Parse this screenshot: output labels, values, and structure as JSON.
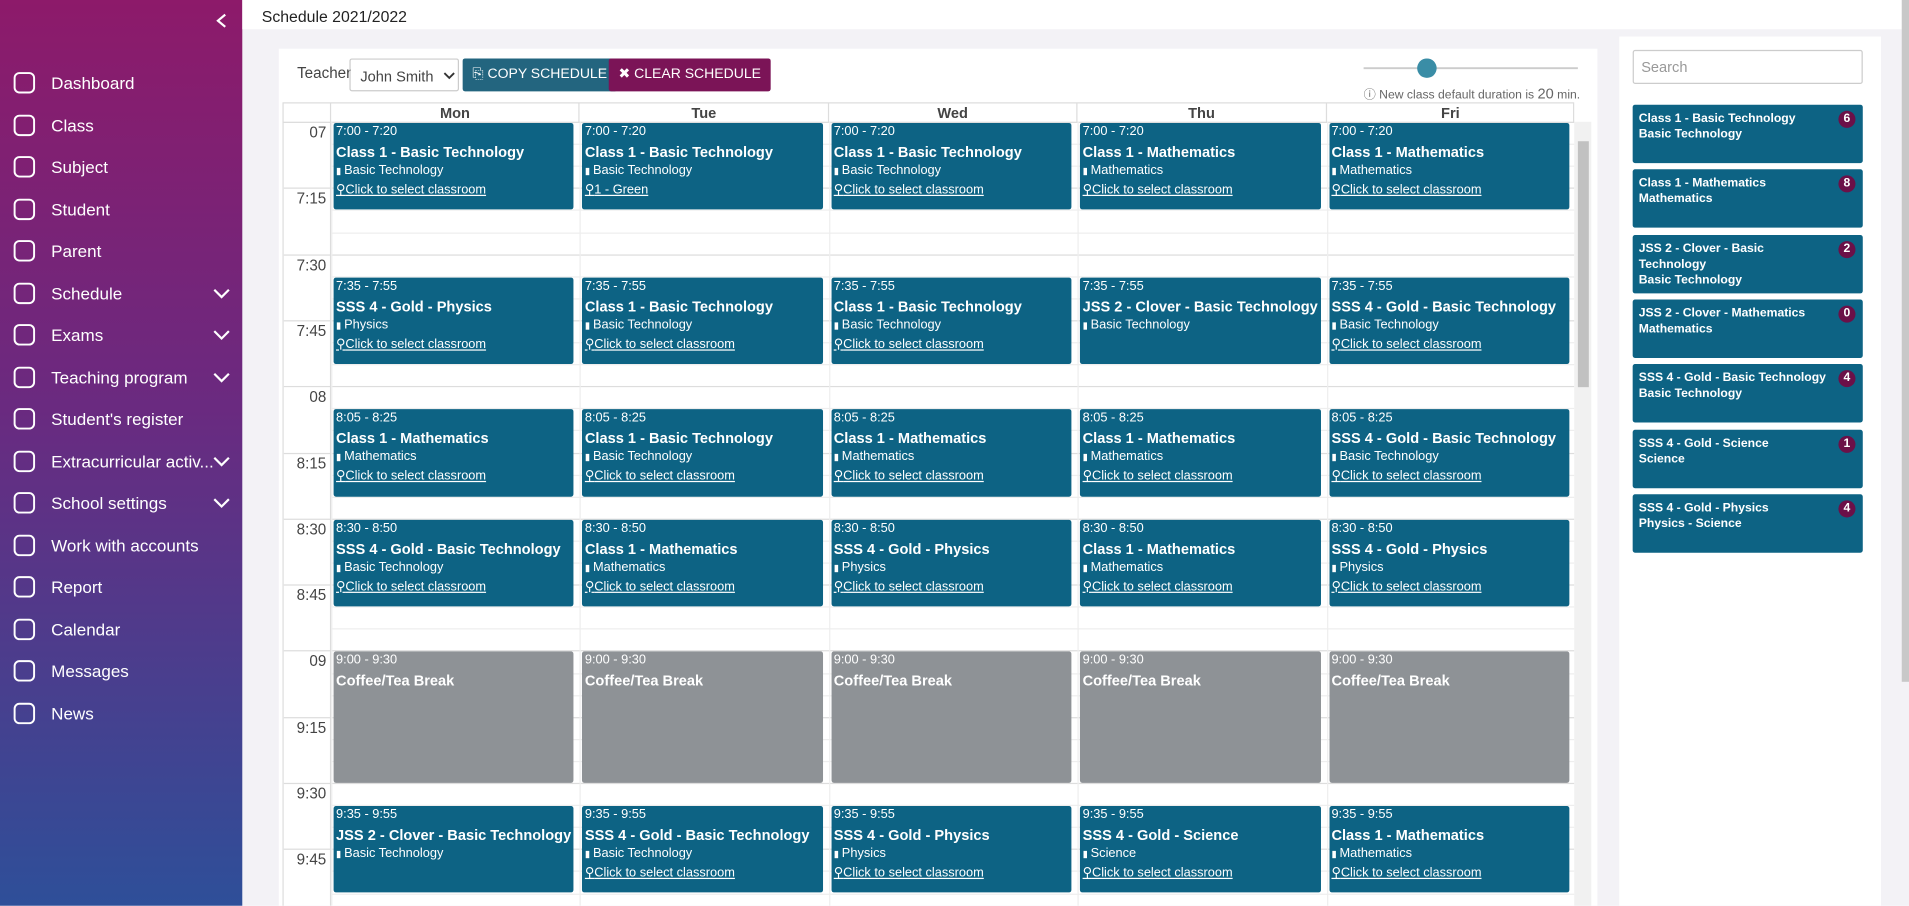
{
  "header": {
    "title": "Schedule 2021/2022"
  },
  "sidebar": {
    "items": [
      {
        "label": "Dashboard",
        "has_submenu": false
      },
      {
        "label": "Class",
        "has_submenu": false
      },
      {
        "label": "Subject",
        "has_submenu": false
      },
      {
        "label": "Student",
        "has_submenu": false
      },
      {
        "label": "Parent",
        "has_submenu": false
      },
      {
        "label": "Schedule",
        "has_submenu": true
      },
      {
        "label": "Exams",
        "has_submenu": true
      },
      {
        "label": "Teaching program",
        "has_submenu": true
      },
      {
        "label": "Student's register",
        "has_submenu": false
      },
      {
        "label": "Extracurricular activ...",
        "has_submenu": true
      },
      {
        "label": "School settings",
        "has_submenu": true
      },
      {
        "label": "Work with accounts",
        "has_submenu": false
      },
      {
        "label": "Report",
        "has_submenu": false
      },
      {
        "label": "Calendar",
        "has_submenu": false
      },
      {
        "label": "Messages",
        "has_submenu": false
      },
      {
        "label": "News",
        "has_submenu": false
      }
    ]
  },
  "toolbar": {
    "teacher_label": "Teacher",
    "teacher": "John Smith",
    "copy_button": "COPY SCHEDULE",
    "clear_button": "CLEAR SCHEDULE",
    "duration_note": "New class default duration is",
    "duration": "20",
    "duration_unit": "min."
  },
  "schedule": {
    "days": [
      "Mon",
      "Tue",
      "Wed",
      "Thu",
      "Fri"
    ],
    "time_labels": [
      "07",
      "7:15",
      "7:30",
      "7:45",
      "08",
      "8:15",
      "8:30",
      "8:45",
      "09",
      "9:15",
      "9:30",
      "9:45"
    ],
    "rows": [
      {
        "events": [
          {
            "time": "7:00 - 7:20",
            "title": "Class 1 - Basic Technology",
            "subject": "Basic Technology",
            "room": "Click to select classroom"
          },
          {
            "time": "7:00 - 7:20",
            "title": "Class 1 - Basic Technology",
            "subject": "Basic Technology",
            "room": "1 - Green"
          },
          {
            "time": "7:00 - 7:20",
            "title": "Class 1 - Basic Technology",
            "subject": "Basic Technology",
            "room": "Click to select classroom"
          },
          {
            "time": "7:00 - 7:20",
            "title": "Class 1 - Mathematics",
            "subject": "Mathematics",
            "room": "Click to select classroom"
          },
          {
            "time": "7:00 - 7:20",
            "title": "Class 1 - Mathematics",
            "subject": "Mathematics",
            "room": "Click to select classroom"
          }
        ]
      },
      {
        "events": [
          {
            "time": "7:35 - 7:55",
            "title": "SSS 4 - Gold - Physics",
            "subject": "Physics",
            "room": "Click to select classroom"
          },
          {
            "time": "7:35 - 7:55",
            "title": "Class 1 - Basic Technology",
            "subject": "Basic Technology",
            "room": "Click to select classroom"
          },
          {
            "time": "7:35 - 7:55",
            "title": "Class 1 - Basic Technology",
            "subject": "Basic Technology",
            "room": "Click to select classroom"
          },
          {
            "time": "7:35 - 7:55",
            "title": "JSS 2 - Clover - Basic Technology",
            "subject": "Basic Technology"
          },
          {
            "time": "7:35 - 7:55",
            "title": "SSS 4 - Gold - Basic Technology",
            "subject": "Basic Technology",
            "room": "Click to select classroom"
          }
        ]
      },
      {
        "events": [
          {
            "time": "8:05 - 8:25",
            "title": "Class 1 - Mathematics",
            "subject": "Mathematics",
            "room": "Click to select classroom"
          },
          {
            "time": "8:05 - 8:25",
            "title": "Class 1 - Basic Technology",
            "subject": "Basic Technology",
            "room": "Click to select classroom"
          },
          {
            "time": "8:05 - 8:25",
            "title": "Class 1 - Mathematics",
            "subject": "Mathematics",
            "room": "Click to select classroom"
          },
          {
            "time": "8:05 - 8:25",
            "title": "Class 1 - Mathematics",
            "subject": "Mathematics",
            "room": "Click to select classroom"
          },
          {
            "time": "8:05 - 8:25",
            "title": "SSS 4 - Gold - Basic Technology",
            "subject": "Basic Technology",
            "room": "Click to select classroom"
          }
        ]
      },
      {
        "events": [
          {
            "time": "8:30 - 8:50",
            "title": "SSS 4 - Gold - Basic Technology",
            "subject": "Basic Technology",
            "room": "Click to select classroom"
          },
          {
            "time": "8:30 - 8:50",
            "title": "Class 1 - Mathematics",
            "subject": "Mathematics",
            "room": "Click to select classroom"
          },
          {
            "time": "8:30 - 8:50",
            "title": "SSS 4 - Gold - Physics",
            "subject": "Physics",
            "room": "Click to select classroom"
          },
          {
            "time": "8:30 - 8:50",
            "title": "Class 1 - Mathematics",
            "subject": "Mathematics",
            "room": "Click to select classroom"
          },
          {
            "time": "8:30 - 8:50",
            "title": "SSS 4 - Gold - Physics",
            "subject": "Physics",
            "room": "Click to select classroom"
          }
        ]
      },
      {
        "break": true,
        "events": [
          {
            "time": "9:00 - 9:30",
            "title": "Coffee/Tea Break"
          },
          {
            "time": "9:00 - 9:30",
            "title": "Coffee/Tea Break"
          },
          {
            "time": "9:00 - 9:30",
            "title": "Coffee/Tea Break"
          },
          {
            "time": "9:00 - 9:30",
            "title": "Coffee/Tea Break"
          },
          {
            "time": "9:00 - 9:30",
            "title": "Coffee/Tea Break"
          }
        ]
      },
      {
        "events": [
          {
            "time": "9:35 - 9:55",
            "title": "JSS 2 - Clover - Basic Technology",
            "subject": "Basic Technology"
          },
          {
            "time": "9:35 - 9:55",
            "title": "SSS 4 - Gold - Basic Technology",
            "subject": "Basic Technology",
            "room": "Click to select classroom"
          },
          {
            "time": "9:35 - 9:55",
            "title": "SSS 4 - Gold - Physics",
            "subject": "Physics",
            "room": "Click to select classroom"
          },
          {
            "time": "9:35 - 9:55",
            "title": "SSS 4 - Gold - Science",
            "subject": "Science",
            "room": "Click to select classroom"
          },
          {
            "time": "9:35 - 9:55",
            "title": "Class 1 - Mathematics",
            "subject": "Mathematics",
            "room": "Click to select classroom"
          }
        ]
      }
    ]
  },
  "classes_panel": {
    "search_placeholder": "Search",
    "cards": [
      {
        "title": "Class 1 - Basic Technology",
        "subtitle": "Basic Technology",
        "count": 6
      },
      {
        "title": "Class 1 - Mathematics",
        "subtitle": "Mathematics",
        "count": 8
      },
      {
        "title": "JSS 2 - Clover - Basic Technology",
        "subtitle": "Basic Technology",
        "count": 2
      },
      {
        "title": "JSS 2 - Clover - Mathematics",
        "subtitle": "Mathematics",
        "count": 0
      },
      {
        "title": "SSS 4 - Gold - Basic Technology",
        "subtitle": "Basic Technology",
        "count": 4
      },
      {
        "title": "SSS 4 - Gold - Science",
        "subtitle": "Science",
        "count": 1
      },
      {
        "title": "SSS 4 - Gold - Physics",
        "subtitle": "Physics - Science",
        "count": 4
      }
    ]
  }
}
